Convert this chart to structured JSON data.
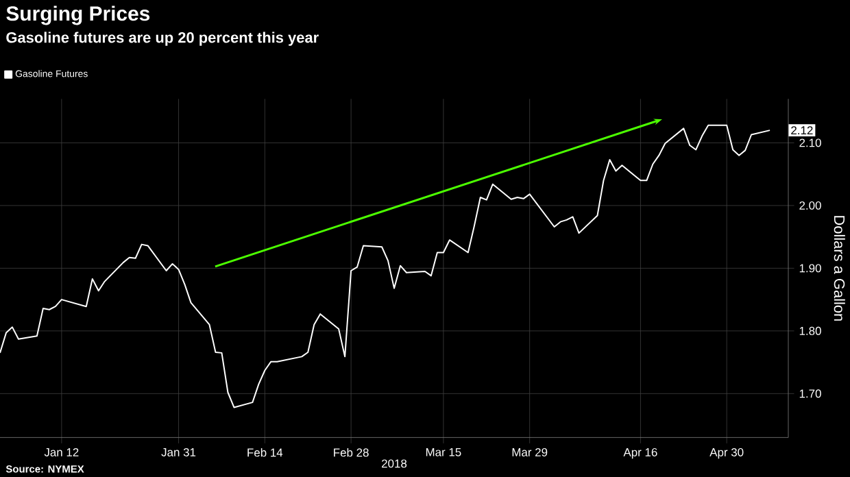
{
  "chart_data": {
    "type": "line",
    "title": "Surging Prices",
    "subtitle": "Gasoline futures are up 20 percent this year",
    "xlabel": "2018",
    "ylabel": "Dollars a Gallon",
    "annotations": [
      "Source: NYMEX"
    ],
    "x": [
      "2018-01-02",
      "2018-01-03",
      "2018-01-04",
      "2018-01-05",
      "2018-01-08",
      "2018-01-09",
      "2018-01-10",
      "2018-01-11",
      "2018-01-12",
      "2018-01-16",
      "2018-01-17",
      "2018-01-18",
      "2018-01-19",
      "2018-01-22",
      "2018-01-23",
      "2018-01-24",
      "2018-01-25",
      "2018-01-26",
      "2018-01-29",
      "2018-01-30",
      "2018-01-31",
      "2018-02-01",
      "2018-02-02",
      "2018-02-05",
      "2018-02-06",
      "2018-02-07",
      "2018-02-08",
      "2018-02-09",
      "2018-02-12",
      "2018-02-13",
      "2018-02-14",
      "2018-02-15",
      "2018-02-16",
      "2018-02-20",
      "2018-02-21",
      "2018-02-22",
      "2018-02-23",
      "2018-02-26",
      "2018-02-27",
      "2018-02-28",
      "2018-03-01",
      "2018-03-02",
      "2018-03-05",
      "2018-03-06",
      "2018-03-07",
      "2018-03-08",
      "2018-03-09",
      "2018-03-12",
      "2018-03-13",
      "2018-03-14",
      "2018-03-15",
      "2018-03-16",
      "2018-03-19",
      "2018-03-20",
      "2018-03-21",
      "2018-03-22",
      "2018-03-23",
      "2018-03-26",
      "2018-03-27",
      "2018-03-28",
      "2018-03-29",
      "2018-04-02",
      "2018-04-03",
      "2018-04-04",
      "2018-04-05",
      "2018-04-06",
      "2018-04-09",
      "2018-04-10",
      "2018-04-11",
      "2018-04-12",
      "2018-04-13",
      "2018-04-16",
      "2018-04-17",
      "2018-04-18",
      "2018-04-19",
      "2018-04-20",
      "2018-04-23",
      "2018-04-24",
      "2018-04-25",
      "2018-04-26",
      "2018-04-27",
      "2018-04-30",
      "2018-05-01",
      "2018-05-02",
      "2018-05-03",
      "2018-05-04",
      "2018-05-07"
    ],
    "series": [
      {
        "name": "Gasoline Futures",
        "color": "#ffffff",
        "values": [
          1.765,
          1.797,
          1.806,
          1.787,
          1.792,
          1.836,
          1.834,
          1.839,
          1.85,
          1.839,
          1.883,
          1.864,
          1.879,
          1.909,
          1.917,
          1.916,
          1.938,
          1.936,
          1.896,
          1.907,
          1.898,
          1.874,
          1.845,
          1.81,
          1.766,
          1.765,
          1.702,
          1.678,
          1.686,
          1.715,
          1.737,
          1.751,
          1.751,
          1.759,
          1.766,
          1.81,
          1.827,
          1.803,
          1.759,
          1.896,
          1.902,
          1.936,
          1.934,
          1.912,
          1.868,
          1.904,
          1.893,
          1.895,
          1.888,
          1.925,
          1.925,
          1.945,
          1.925,
          1.967,
          2.013,
          2.009,
          2.034,
          2.01,
          2.013,
          2.011,
          2.018,
          1.966,
          1.974,
          1.977,
          1.982,
          1.956,
          1.984,
          2.04,
          2.073,
          2.055,
          2.064,
          2.04,
          2.04,
          2.066,
          2.08,
          2.099,
          2.123,
          2.096,
          2.089,
          2.111,
          2.128,
          2.128,
          2.089,
          2.08,
          2.088,
          2.113,
          2.12
        ],
        "value_labels": [
          null,
          null,
          null,
          null,
          null,
          null,
          null,
          null,
          null,
          null,
          null,
          null,
          null,
          null,
          null,
          null,
          null,
          null,
          null,
          null,
          null,
          null,
          null,
          null,
          null,
          null,
          null,
          null,
          null,
          null,
          null,
          null,
          null,
          null,
          null,
          null,
          null,
          null,
          null,
          null,
          null,
          null,
          null,
          null,
          null,
          null,
          null,
          null,
          null,
          null,
          null,
          null,
          null,
          null,
          null,
          null,
          null,
          null,
          null,
          null,
          null,
          null,
          null,
          null,
          null,
          null,
          null,
          null,
          null,
          null,
          null,
          null,
          null,
          null,
          null,
          null,
          null,
          null,
          null,
          null,
          null,
          null,
          null,
          null,
          null,
          null,
          "2.12"
        ]
      }
    ],
    "xlim": [
      "2018-01-02",
      "2018-05-10"
    ],
    "xticks": [
      {
        "value": "2018-01-12",
        "label": "Jan 12"
      },
      {
        "value": "2018-01-31",
        "label": "Jan 31"
      },
      {
        "value": "2018-02-14",
        "label": "Feb 14"
      },
      {
        "value": "2018-02-28",
        "label": "Feb 28"
      },
      {
        "value": "2018-03-15",
        "label": "Mar 15"
      },
      {
        "value": "2018-03-29",
        "label": "Mar 29"
      },
      {
        "value": "2018-04-16",
        "label": "Apr 16"
      },
      {
        "value": "2018-04-30",
        "label": "Apr 30"
      }
    ],
    "ylim": [
      1.63,
      2.17
    ],
    "yticks": [
      {
        "value": 1.7,
        "label": "1.70"
      },
      {
        "value": 1.8,
        "label": "1.80"
      },
      {
        "value": 1.9,
        "label": "1.90"
      },
      {
        "value": 2.0,
        "label": "2.00"
      },
      {
        "value": 2.1,
        "label": "2.10"
      }
    ],
    "grid": true,
    "legend": "top left",
    "marker": "none",
    "line_style": "solid"
  }
}
